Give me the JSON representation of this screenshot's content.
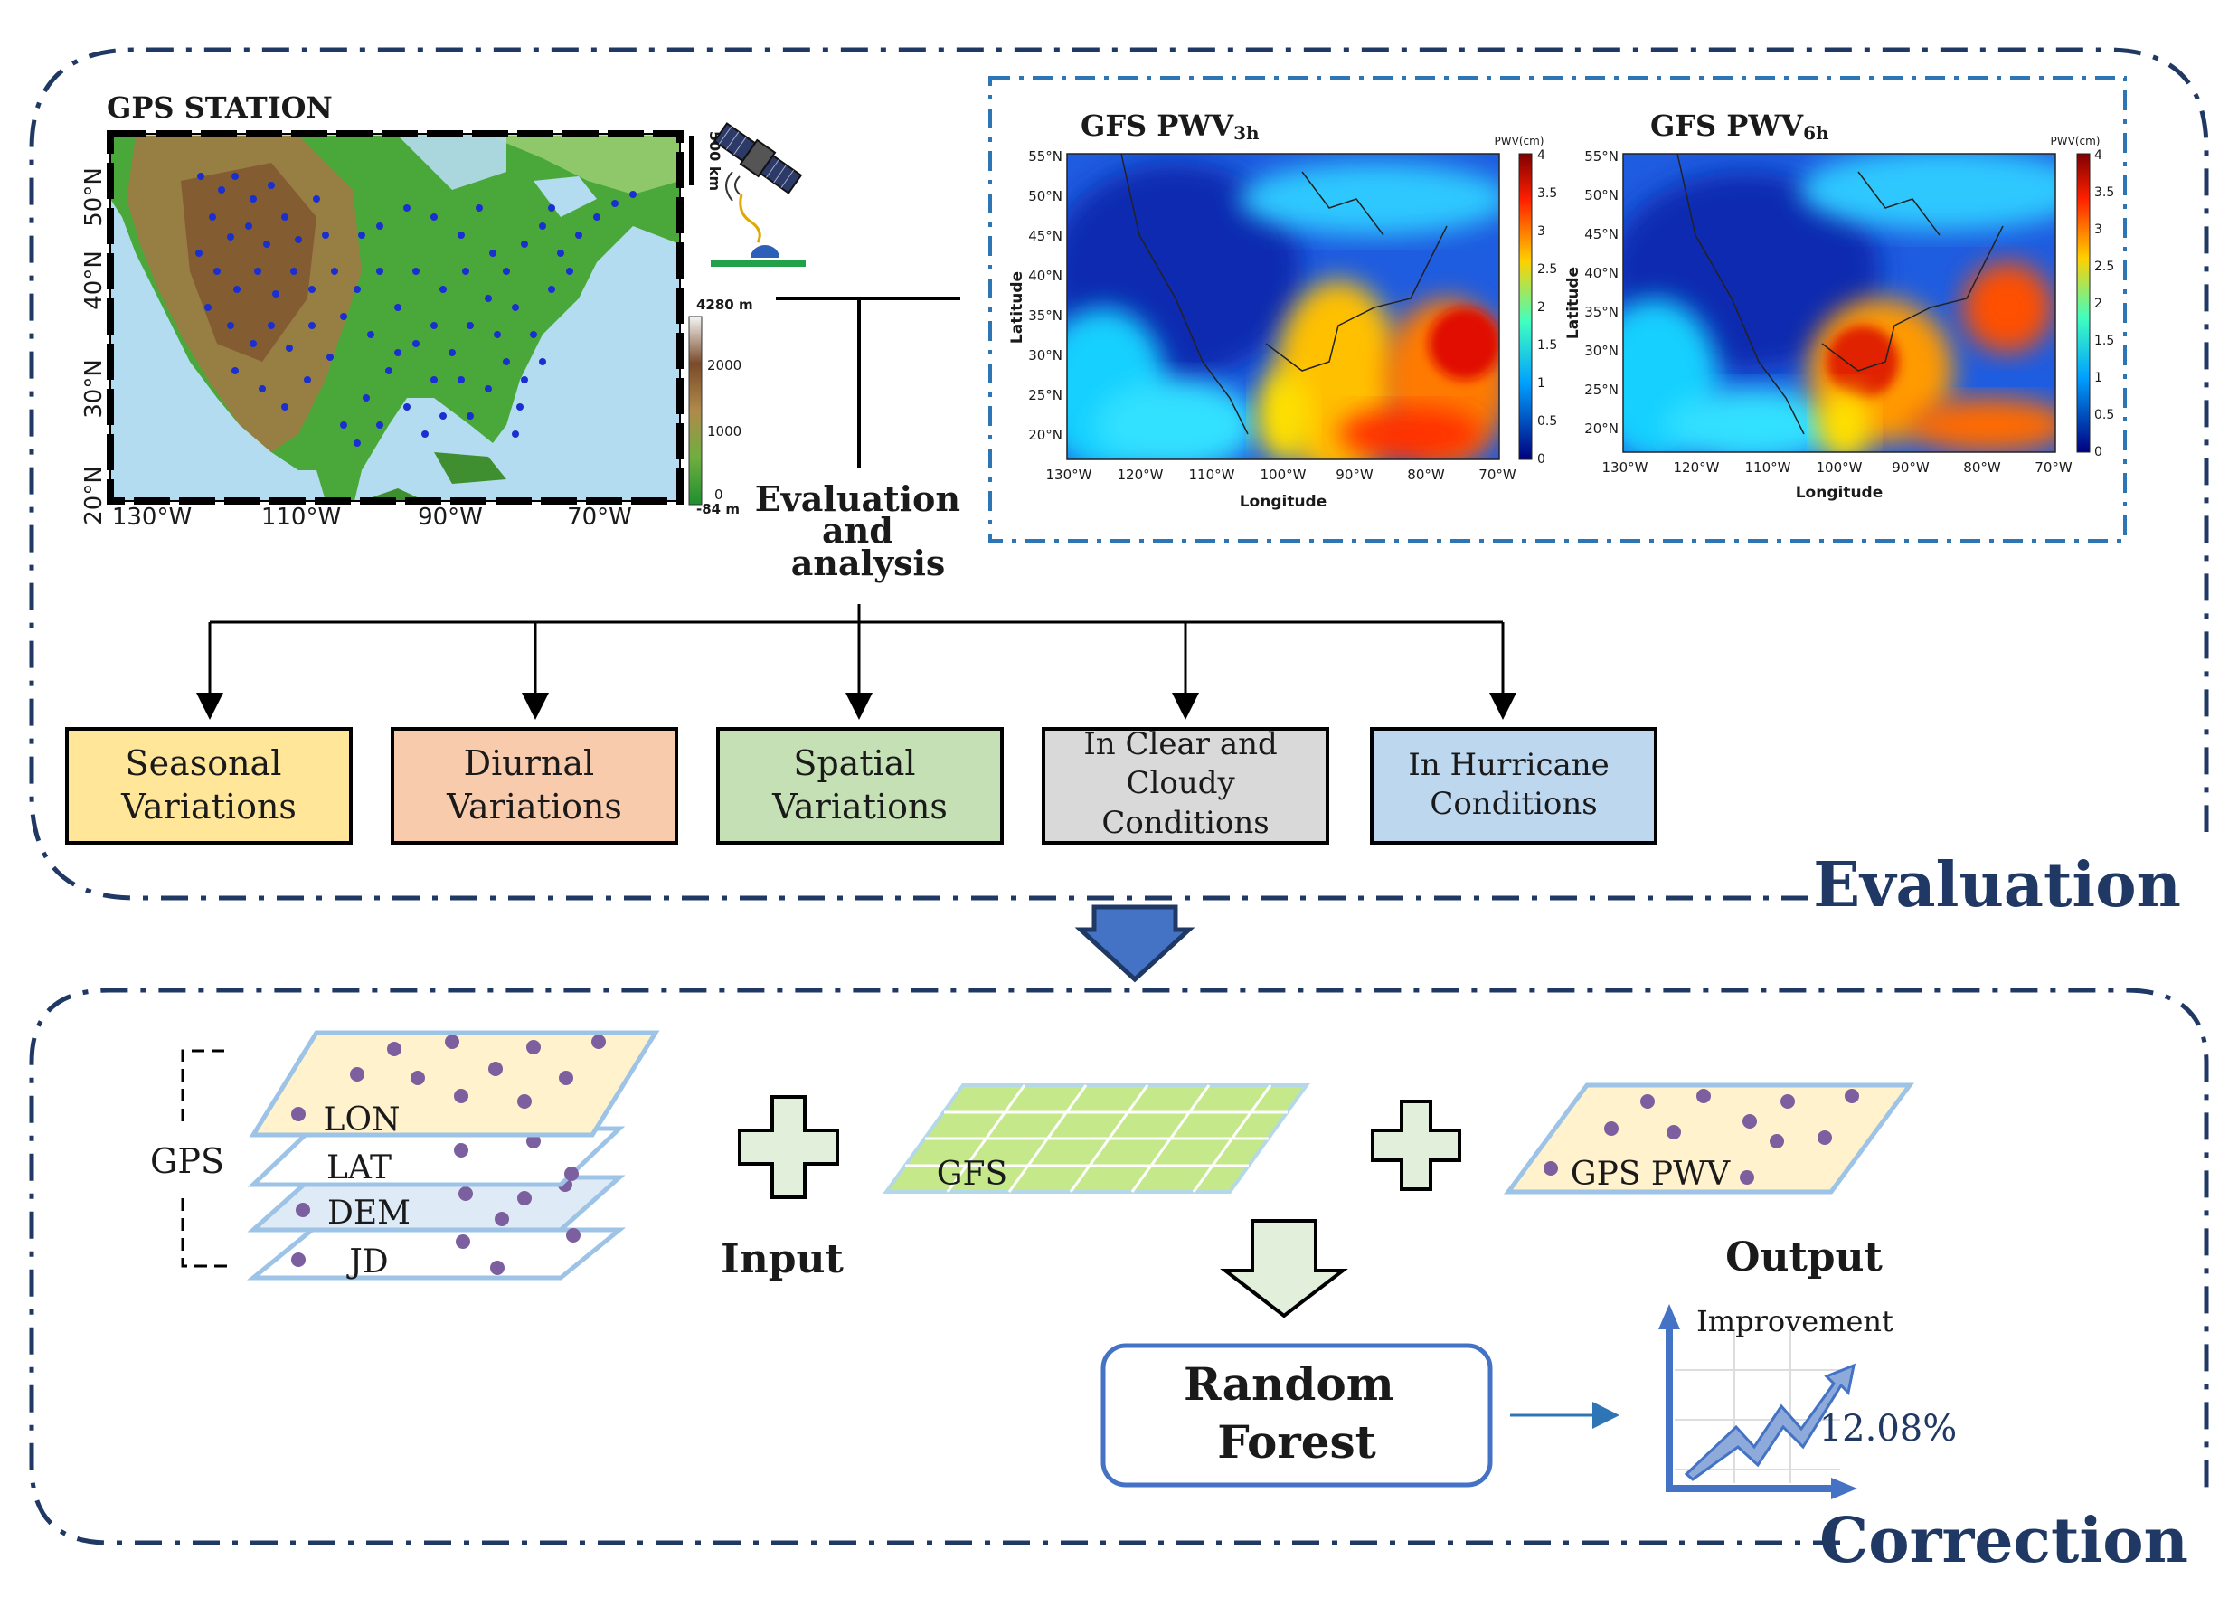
{
  "evaluation": {
    "section_label": "Evaluation",
    "gps_map": {
      "title": "GPS STATION",
      "lat_labels": [
        "50°N",
        "40°N",
        "30°N",
        "20°N"
      ],
      "lon_labels": [
        "130°W",
        "110°W",
        "90°W",
        "70°W"
      ],
      "scalebar_label": "500 km",
      "elevation_labels": [
        "4280 m",
        "2000",
        "1000",
        "0",
        "-84 m"
      ]
    },
    "gfs_maps": [
      {
        "title_main": "GFS PWV",
        "title_sub": "3h"
      },
      {
        "title_main": "GFS PWV",
        "title_sub": "6h"
      }
    ],
    "gfs_map_common": {
      "lat_labels": [
        "55°N",
        "50°N",
        "45°N",
        "40°N",
        "35°N",
        "30°N",
        "25°N",
        "20°N"
      ],
      "lon_labels": [
        "130°W",
        "120°W",
        "110°W",
        "100°W",
        "90°W",
        "80°W",
        "70°W"
      ],
      "ylabel": "Latitude",
      "xlabel": "Longitude",
      "colorbar_title": "PWV(cm)",
      "colorbar_ticks": [
        "4",
        "3.5",
        "3",
        "2.5",
        "2",
        "1.5",
        "1",
        "0.5",
        "0"
      ]
    },
    "hub": {
      "lines": [
        "Evaluation",
        "and",
        "analysis"
      ]
    },
    "boxes": [
      {
        "lines": [
          "Seasonal",
          "Variations"
        ],
        "fill": "#ffe699"
      },
      {
        "lines": [
          "Diurnal",
          "Variations"
        ],
        "fill": "#f8cbad"
      },
      {
        "lines": [
          "Spatial",
          "Variations"
        ],
        "fill": "#c5e0b4"
      },
      {
        "lines": [
          "In Clear and",
          "Cloudy",
          "Conditions"
        ],
        "fill": "#d9d9d9"
      },
      {
        "lines": [
          "In Hurricane",
          "Conditions"
        ],
        "fill": "#bdd7ee"
      }
    ]
  },
  "correction": {
    "section_label": "Correction",
    "gps_label": "GPS",
    "layers": [
      "LON",
      "LAT",
      "DEM",
      "JD"
    ],
    "input_label": "Input",
    "gfs_label": "GFS",
    "gps_pwv_label": "GPS PWV",
    "output_label": "Output",
    "model_lines": [
      "Random",
      "Forest"
    ],
    "improvement_label": "Improvement",
    "improvement_value": "12.08%"
  },
  "colors": {
    "navy": "#1f3864",
    "dash_blue": "#2e75b6",
    "big_arrow": "#4472c4",
    "plus_fill": "#e2efda",
    "dot_purple": "#7c5f9e",
    "layer_yellow": "#fff2cc",
    "layer_blue": "#deebf7",
    "gfs_green": "#c5e88a",
    "chart_blue": "#4472c4"
  }
}
